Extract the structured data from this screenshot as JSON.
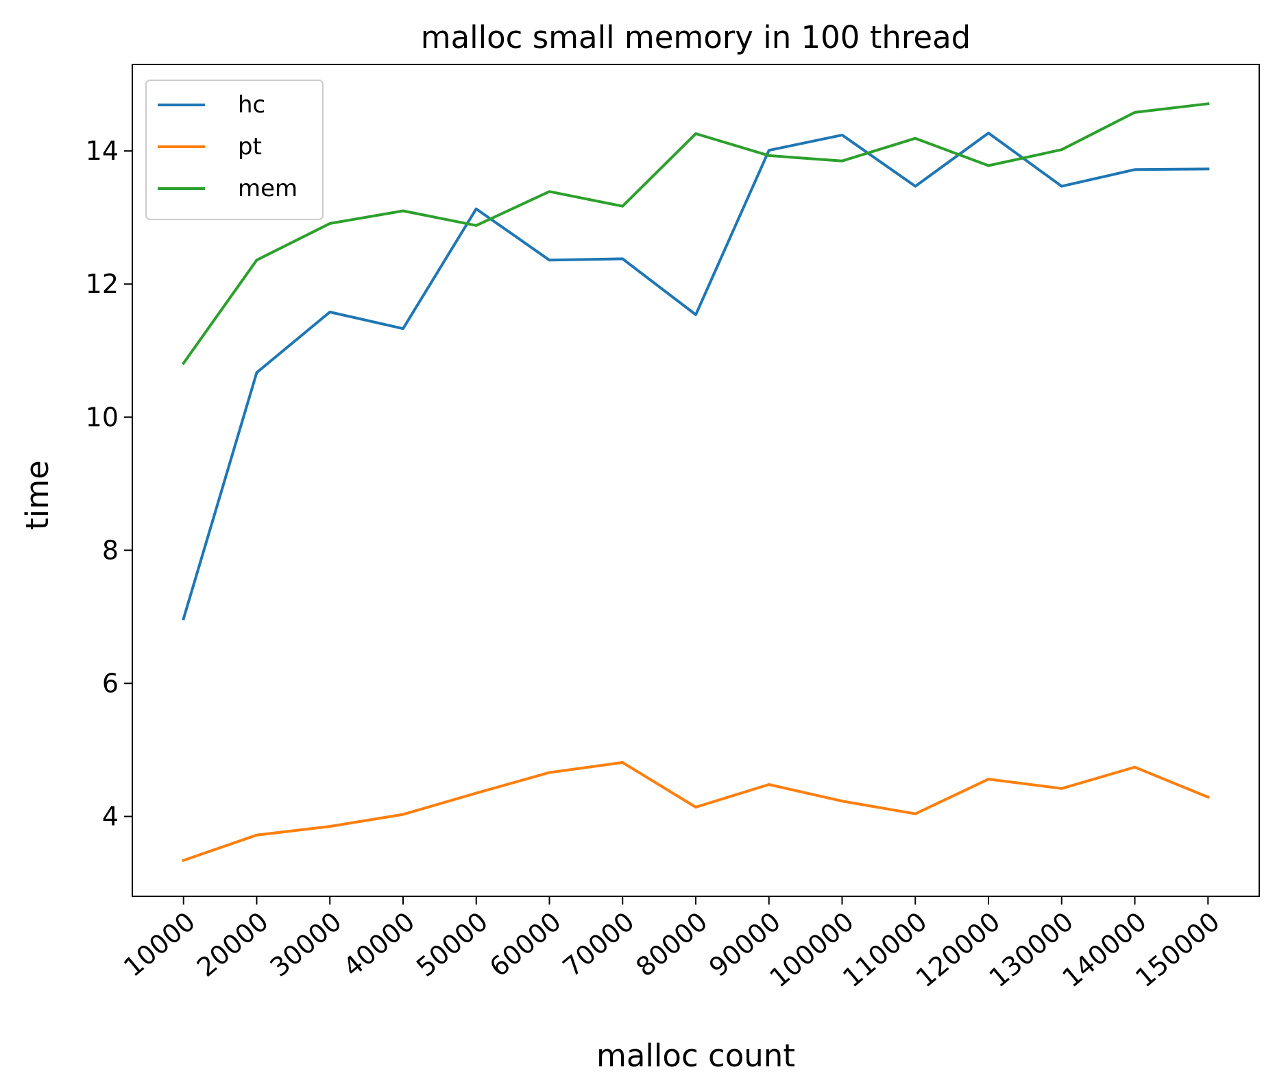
{
  "chart_data": {
    "type": "line",
    "title": "malloc small memory in 100 thread",
    "xlabel": "malloc count",
    "ylabel": "time",
    "x": [
      10000,
      20000,
      30000,
      40000,
      50000,
      60000,
      70000,
      80000,
      90000,
      100000,
      110000,
      120000,
      130000,
      140000,
      150000
    ],
    "x_tick_labels": [
      "10000",
      "20000",
      "30000",
      "40000",
      "50000",
      "60000",
      "70000",
      "80000",
      "90000",
      "100000",
      "110000",
      "120000",
      "130000",
      "140000",
      "150000"
    ],
    "y_ticks": [
      4,
      6,
      8,
      10,
      12,
      14
    ],
    "y_tick_labels": [
      "4",
      "6",
      "8",
      "10",
      "12",
      "14"
    ],
    "ylim": [
      2.8,
      15.3
    ],
    "grid": false,
    "legend_position": "top-left",
    "series": [
      {
        "name": "hc",
        "color": "#1f77b4",
        "values": [
          6.97,
          10.67,
          11.58,
          11.33,
          13.13,
          12.36,
          12.38,
          11.54,
          14.01,
          14.24,
          13.47,
          14.27,
          13.47,
          13.72,
          13.73
        ]
      },
      {
        "name": "pt",
        "color": "#ff7f0e",
        "values": [
          3.34,
          3.72,
          3.85,
          4.03,
          4.35,
          4.66,
          4.81,
          4.14,
          4.48,
          4.23,
          4.04,
          4.56,
          4.42,
          4.74,
          4.29
        ]
      },
      {
        "name": "mem",
        "color": "#2ca02c",
        "values": [
          10.81,
          12.36,
          12.91,
          13.1,
          12.88,
          13.39,
          13.17,
          14.26,
          13.93,
          13.85,
          14.19,
          13.78,
          14.02,
          14.58,
          14.71
        ]
      }
    ]
  }
}
